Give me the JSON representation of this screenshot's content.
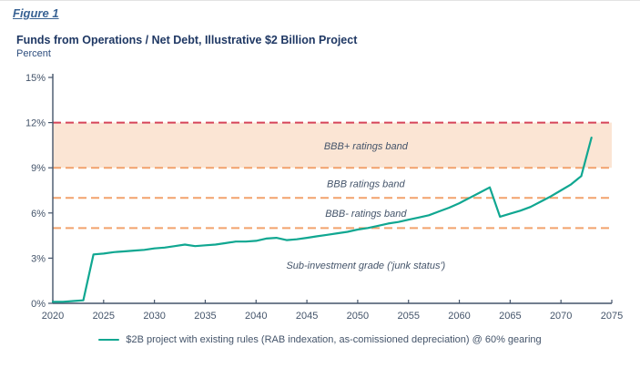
{
  "figure_label": "Figure 1",
  "title": "Funds from Operations / Net Debt, Illustrative $2 Billion Project",
  "subtitle": "Percent",
  "colors": {
    "series": "#10a791",
    "threshold_red": "#d6455a",
    "threshold_orange": "#f2a26c",
    "band_fill": "#fbe5d4",
    "axis": "#44546a",
    "annotation_text": "#44546a",
    "title_navy": "#1f3864"
  },
  "chart_data": {
    "type": "line",
    "title": "Funds from Operations / Net Debt, Illustrative $2 Billion Project",
    "xlabel": "",
    "ylabel": "Percent",
    "xlim": [
      2020,
      2075
    ],
    "ylim": [
      0,
      15
    ],
    "grid": false,
    "legend_position": "bottom-center",
    "x_ticks": [
      2020,
      2025,
      2030,
      2035,
      2040,
      2045,
      2050,
      2055,
      2060,
      2065,
      2070,
      2075
    ],
    "y_ticks": [
      0,
      3,
      6,
      9,
      12,
      15
    ],
    "y_tick_labels": [
      "0%",
      "3%",
      "6%",
      "9%",
      "12%",
      "15%"
    ],
    "band": {
      "from": 9,
      "to": 12,
      "label": "BBB+ ratings band"
    },
    "thresholds": [
      {
        "value": 12,
        "color_key": "threshold_red"
      },
      {
        "value": 9,
        "color_key": "threshold_orange"
      },
      {
        "value": 7,
        "color_key": "threshold_orange"
      },
      {
        "value": 5,
        "color_key": "threshold_orange"
      }
    ],
    "annotations": [
      {
        "text": "BBB+ ratings band",
        "year": 2050.8,
        "value": 10.45
      },
      {
        "text": "BBB ratings band",
        "year": 2050.8,
        "value": 7.95
      },
      {
        "text": "BBB- ratings band",
        "year": 2050.8,
        "value": 6.0
      },
      {
        "text": "Sub-investment grade ('junk status')",
        "year": 2050.8,
        "value": 2.55
      }
    ],
    "series": [
      {
        "name": "$2B project with existing rules (RAB indexation, as-comissioned depreciation) @ 60% gearing",
        "x": [
          2020,
          2021,
          2022,
          2023,
          2024,
          2025,
          2026,
          2027,
          2028,
          2029,
          2030,
          2031,
          2032,
          2033,
          2034,
          2035,
          2036,
          2037,
          2038,
          2039,
          2040,
          2041,
          2042,
          2043,
          2044,
          2045,
          2046,
          2047,
          2048,
          2049,
          2050,
          2051,
          2052,
          2053,
          2054,
          2055,
          2056,
          2057,
          2058,
          2059,
          2060,
          2061,
          2062,
          2063,
          2064,
          2065,
          2066,
          2067,
          2068,
          2069,
          2070,
          2071,
          2072,
          2073
        ],
        "y": [
          0.1,
          0.1,
          0.15,
          0.2,
          3.25,
          3.3,
          3.4,
          3.45,
          3.5,
          3.55,
          3.65,
          3.7,
          3.8,
          3.9,
          3.8,
          3.85,
          3.9,
          4.0,
          4.1,
          4.1,
          4.15,
          4.3,
          4.35,
          4.2,
          4.25,
          4.35,
          4.45,
          4.55,
          4.65,
          4.75,
          4.9,
          5.0,
          5.15,
          5.3,
          5.4,
          5.55,
          5.7,
          5.85,
          6.1,
          6.35,
          6.65,
          7.0,
          7.35,
          7.7,
          5.75,
          5.95,
          6.15,
          6.4,
          6.75,
          7.1,
          7.5,
          7.9,
          8.45,
          11.0
        ]
      }
    ]
  }
}
